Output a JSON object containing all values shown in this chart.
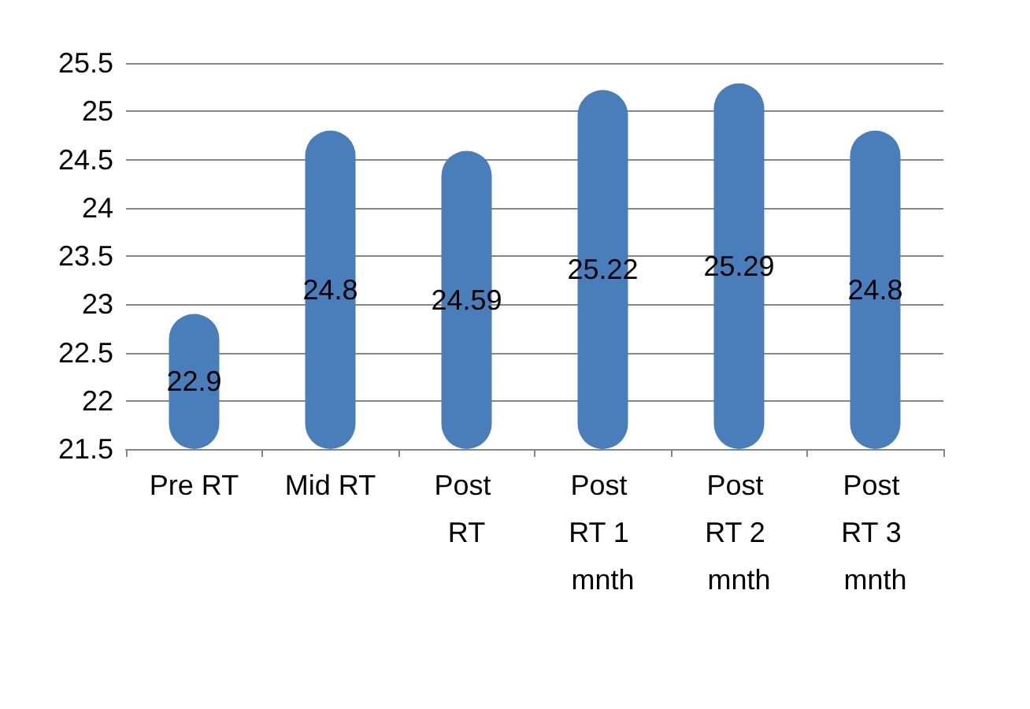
{
  "chart_data": {
    "type": "bar",
    "categories": [
      "Pre RT",
      "Mid RT",
      "Post RT",
      "Post RT 1 mnth",
      "Post RT 2 mnth",
      "Post RT 3 mnth"
    ],
    "values": [
      22.9,
      24.8,
      24.59,
      25.22,
      25.29,
      24.8
    ],
    "color": "#4a7ebb",
    "ylim": [
      21.5,
      25.5
    ],
    "yticks": [
      21.5,
      22,
      22.5,
      23,
      23.5,
      24,
      24.5,
      25,
      25.5
    ],
    "grid": "y",
    "data_labels": true
  }
}
